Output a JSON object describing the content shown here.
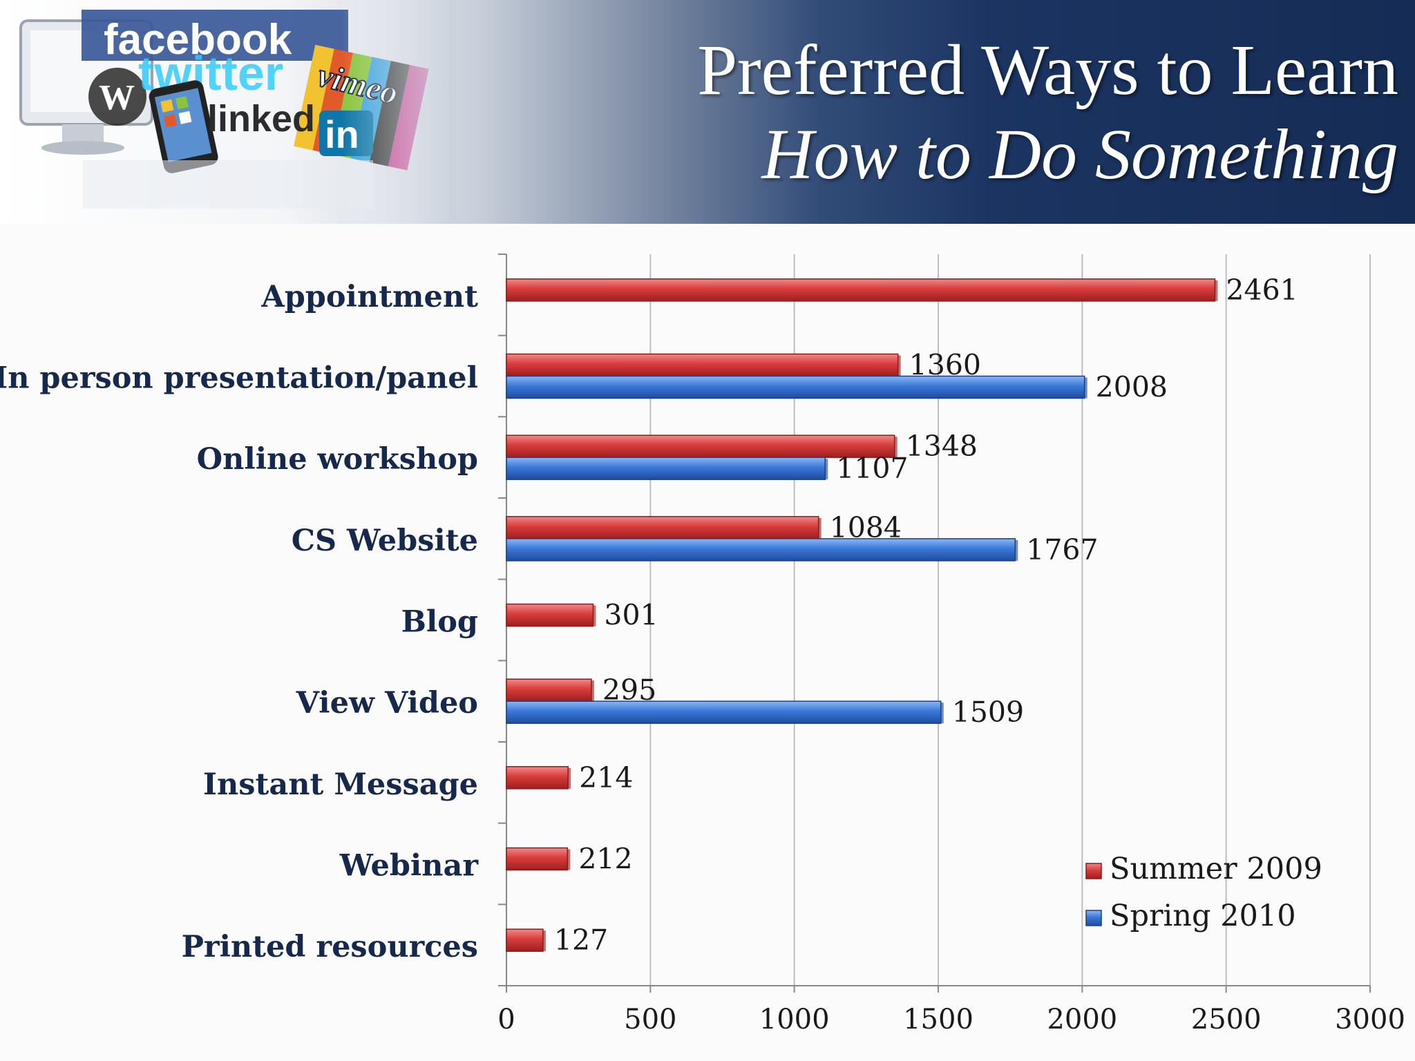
{
  "header": {
    "title_line1": "Preferred Ways to Learn",
    "title_line2": "How to Do Something",
    "collage_words": [
      "facebook",
      "twitter",
      "linked",
      "vimeo",
      "in"
    ]
  },
  "chart_data": {
    "type": "bar",
    "orientation": "horizontal",
    "title": "Preferred Ways to Learn How to Do Something",
    "categories": [
      "Appointment",
      "In person presentation/panel",
      "Online workshop",
      "CS Website",
      "Blog",
      "View Video",
      "Instant Message",
      "Webinar",
      "Printed resources"
    ],
    "series": [
      {
        "name": "Summer 2009",
        "color": "#d43a3a",
        "values": [
          2461,
          1360,
          1348,
          1084,
          301,
          295,
          214,
          212,
          127
        ]
      },
      {
        "name": "Spring 2010",
        "color": "#3a78d8",
        "values": [
          null,
          2008,
          1107,
          1767,
          null,
          1509,
          null,
          null,
          null
        ]
      }
    ],
    "xlim": [
      0,
      3000
    ],
    "xticks": [
      0,
      500,
      1000,
      1500,
      2000,
      2500,
      3000
    ],
    "xlabel": "",
    "ylabel": "",
    "grid": "vertical",
    "legend_position": "bottom-right"
  }
}
